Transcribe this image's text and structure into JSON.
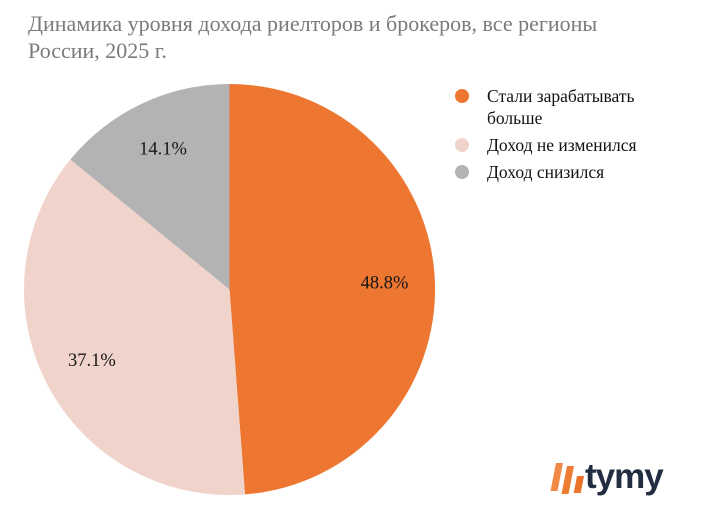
{
  "title": {
    "lines": [
      "Динамика уровня дохода риелторов и брокеров, все регионы",
      "России, 2025 г."
    ],
    "full": "Динамика уровня дохода риелторов и брокеров, все регионы России, 2025 г."
  },
  "chart_data": {
    "type": "pie",
    "title": "Динамика уровня дохода риелторов и брокеров, все регионы России, 2025 г.",
    "labels": [
      "Стали зарабатывать больше",
      "Доход не изменился",
      "Доход снизился"
    ],
    "values": [
      48.8,
      37.1,
      14.1
    ],
    "value_labels": [
      "48.8%",
      "37.1%",
      "14.1%"
    ],
    "colors": [
      "#ED7631",
      "#F0D4CB",
      "#B3B3B4"
    ],
    "start_angle_deg": 0,
    "direction": "clockwise",
    "legend_position": "right",
    "label_color": "#161616"
  },
  "branding": {
    "logo_text": "tymy",
    "logo_text_color": "#232D42",
    "mark_colors": [
      "#F08A45",
      "#EE7C32",
      "#ED732A"
    ]
  }
}
